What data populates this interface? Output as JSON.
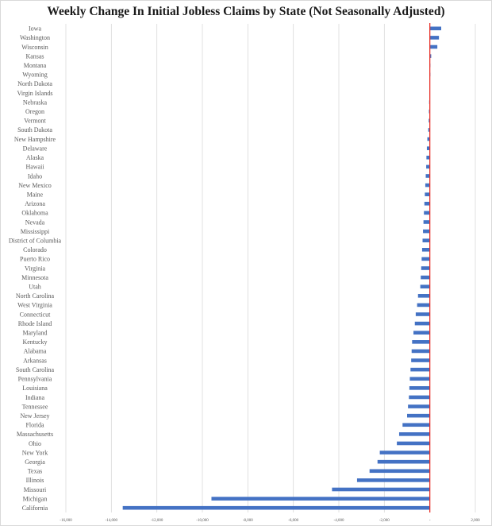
{
  "chart_data": {
    "type": "bar",
    "orientation": "horizontal",
    "title": "Weekly Change In Initial Jobless Claims by State (Not Seasonally Adjusted)",
    "xlabel": "",
    "ylabel": "",
    "xlim": [
      -16000,
      2000
    ],
    "x_ticks": [
      -16000,
      -14000,
      -12000,
      -10000,
      -8000,
      -6000,
      -4000,
      -2000,
      0,
      2000
    ],
    "x_tick_labels": [
      "-16,000",
      "-14,000",
      "-12,000",
      "-10,000",
      "-8,000",
      "-6,000",
      "-4,000",
      "-2,000",
      "-",
      "2,000"
    ],
    "grid": "vertical",
    "categories": [
      "Iowa",
      "Washington",
      "Wisconsin",
      "Kansas",
      "Montana",
      "Wyoming",
      "North Dakota",
      "Virgin Islands",
      "Nebraska",
      "Oregon",
      "Vermont",
      "South Dakota",
      "New Hampshire",
      "Delaware",
      "Alaska",
      "Hawaii",
      "Idaho",
      "New Mexico",
      "Maine",
      "Arizona",
      "Oklahoma",
      "Nevada",
      "Mississippi",
      "District of Columbia",
      "Colorado",
      "Puerto Rico",
      "Virginia",
      "Minnesota",
      "Utah",
      "North Carolina",
      "West Virginia",
      "Connecticut",
      "Rhode Island",
      "Maryland",
      "Kentucky",
      "Alabama",
      "Arkansas",
      "South Carolina",
      "Pennsylvania",
      "Louisiana",
      "Indiana",
      "Tennessee",
      "New Jersey",
      "Florida",
      "Massachusetts",
      "Ohio",
      "New York",
      "Georgia",
      "Texas",
      "Illinois",
      "Missouri",
      "Michigan",
      "California"
    ],
    "values": [
      500,
      400,
      330,
      60,
      20,
      10,
      -10,
      -20,
      -30,
      -40,
      -50,
      -70,
      -110,
      -130,
      -150,
      -160,
      -180,
      -200,
      -220,
      -240,
      -260,
      -280,
      -300,
      -320,
      -340,
      -360,
      -380,
      -400,
      -420,
      -520,
      -560,
      -620,
      -660,
      -720,
      -780,
      -800,
      -820,
      -850,
      -880,
      -900,
      -920,
      -960,
      -1000,
      -1200,
      -1350,
      -1450,
      -2200,
      -2300,
      -2650,
      -3200,
      -4300,
      -9600,
      -13500
    ],
    "colors": {
      "bar": "#4472c4",
      "zero_line": "#e8332b",
      "grid": "#d9d9d9"
    }
  }
}
